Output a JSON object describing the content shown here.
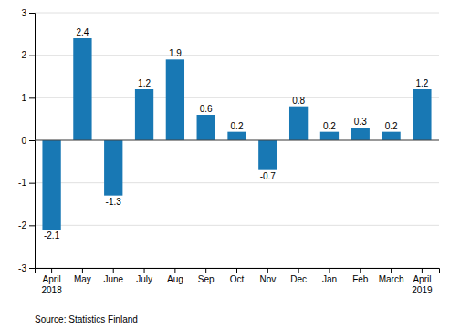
{
  "chart_data": {
    "type": "bar",
    "categories": [
      "April\n2018",
      "May",
      "June",
      "July",
      "Aug",
      "Sep",
      "Oct",
      "Nov",
      "Dec",
      "Jan",
      "Feb",
      "March",
      "April\n2019"
    ],
    "values": [
      -2.1,
      2.4,
      -1.3,
      1.2,
      1.9,
      0.6,
      0.2,
      -0.7,
      0.8,
      0.2,
      0.3,
      0.2,
      1.2
    ],
    "color": "#1878b4",
    "ylim": [
      -3,
      3
    ],
    "yticks": [
      -3,
      -2,
      -1,
      0,
      1,
      2,
      3
    ],
    "grid": true,
    "data_labels": true,
    "annotations": [
      "Source: Statistics Finland"
    ]
  }
}
